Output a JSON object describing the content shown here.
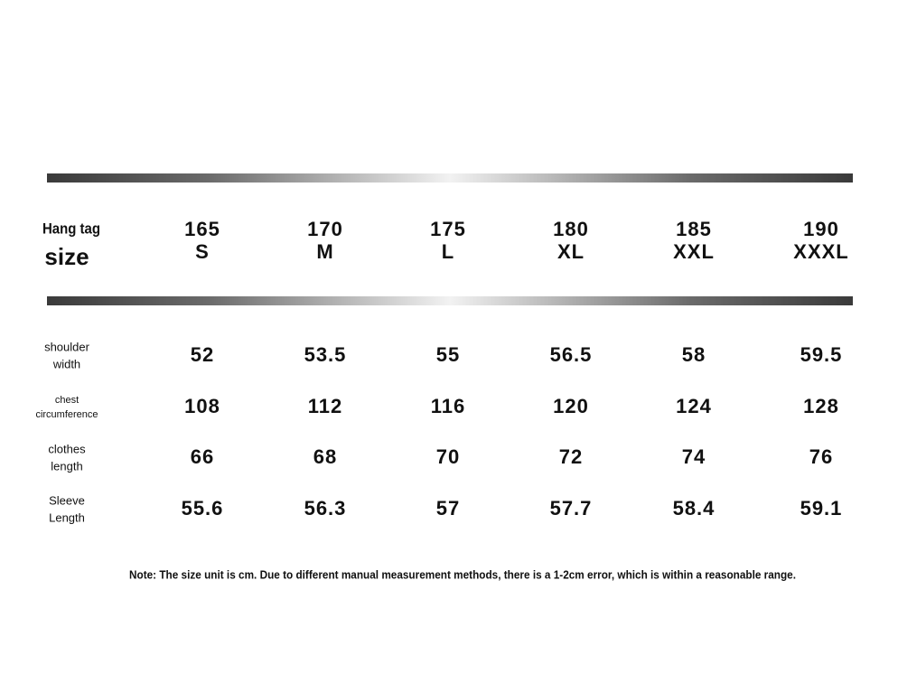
{
  "table": {
    "header_label": [
      "Hang tag",
      "size"
    ],
    "columns": [
      [
        "165",
        "S"
      ],
      [
        "170",
        "M"
      ],
      [
        "175",
        "L"
      ],
      [
        "180",
        "XL"
      ],
      [
        "185",
        "XXL"
      ],
      [
        "190",
        "XXXL"
      ]
    ],
    "rows": [
      {
        "label": [
          "shoulder",
          "width"
        ],
        "values": [
          "52",
          "53.5",
          "55",
          "56.5",
          "58",
          "59.5"
        ]
      },
      {
        "label": [
          "chest",
          "circumference"
        ],
        "values": [
          "108",
          "112",
          "116",
          "120",
          "124",
          "128"
        ]
      },
      {
        "label": [
          "clothes",
          "length"
        ],
        "values": [
          "66",
          "68",
          "70",
          "72",
          "74",
          "76"
        ]
      },
      {
        "label": [
          "Sleeve",
          "Length"
        ],
        "values": [
          "55.6",
          "56.3",
          "57",
          "57.7",
          "58.4",
          "59.1"
        ]
      }
    ]
  },
  "note": "Note: The size unit is cm. Due to different manual measurement methods, there is a 1-2cm error, which is within a reasonable range."
}
